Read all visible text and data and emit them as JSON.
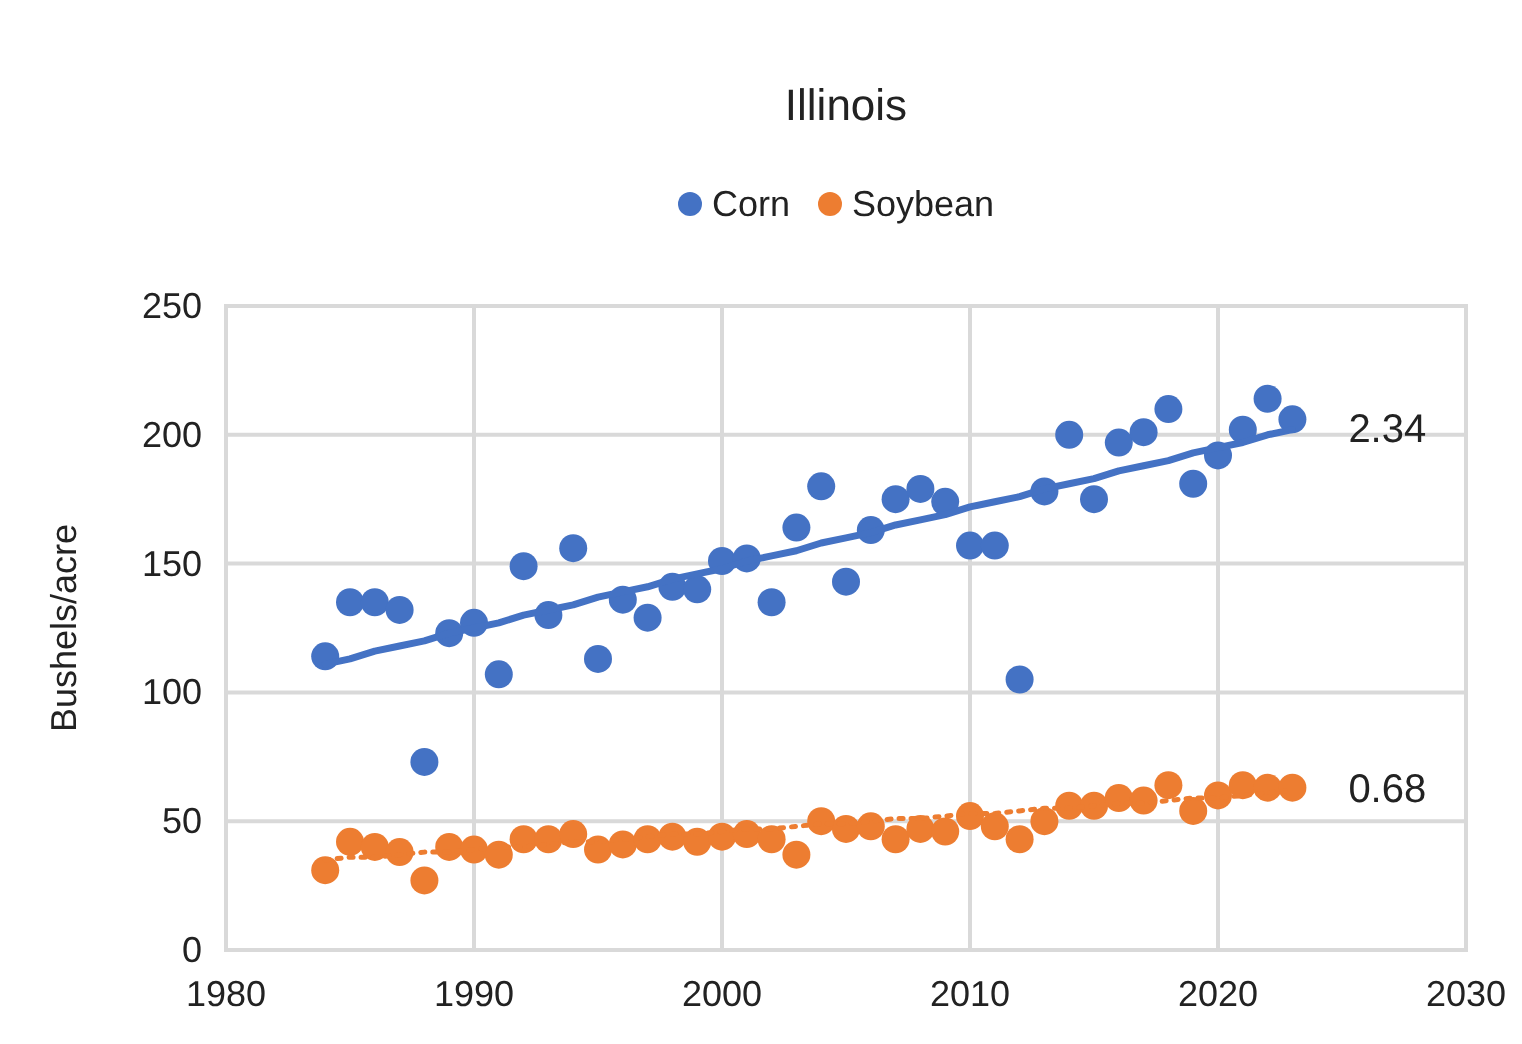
{
  "chart_data": {
    "type": "scatter",
    "title": "Illinois",
    "ylabel": "Bushels/acre",
    "xlim": [
      1980,
      2030
    ],
    "xticks": [
      1980,
      1990,
      2000,
      2010,
      2020,
      2030
    ],
    "ylim": [
      0,
      250
    ],
    "yticks": [
      0,
      50,
      100,
      150,
      200,
      250
    ],
    "grid": true,
    "legend": "top",
    "marker": "circle",
    "x": [
      1984,
      1985,
      1986,
      1987,
      1988,
      1989,
      1990,
      1991,
      1992,
      1993,
      1994,
      1995,
      1996,
      1997,
      1998,
      1999,
      2000,
      2001,
      2002,
      2003,
      2004,
      2005,
      2006,
      2007,
      2008,
      2009,
      2010,
      2011,
      2012,
      2013,
      2014,
      2015,
      2016,
      2017,
      2018,
      2019,
      2020,
      2021,
      2022,
      2023
    ],
    "series": [
      {
        "name": "Corn",
        "color": "#4472c4",
        "values": [
          114,
          135,
          135,
          132,
          73,
          123,
          127,
          107,
          149,
          130,
          156,
          113,
          136,
          129,
          141,
          140,
          151,
          152,
          135,
          164,
          180,
          143,
          163,
          175,
          179,
          174,
          157,
          157,
          105,
          178,
          200,
          175,
          197,
          201,
          210,
          181,
          192,
          202,
          214,
          206
        ]
      },
      {
        "name": "Soybean",
        "color": "#ed7d31",
        "values": [
          31,
          42,
          40,
          38,
          27,
          40,
          39,
          37,
          43,
          43,
          45,
          39,
          41,
          43,
          44,
          42,
          44,
          45,
          43,
          37,
          50,
          47,
          48,
          43,
          47,
          46,
          52,
          48,
          43,
          50,
          56,
          56,
          59,
          58,
          64,
          54,
          60,
          64,
          63,
          63
        ]
      },
      {
        "type": "line",
        "color": "#4472c4",
        "line_style": "solid",
        "marker": "none",
        "values": [
          111,
          113,
          116,
          118,
          120,
          123,
          125,
          127,
          130,
          132,
          134,
          137,
          139,
          141,
          144,
          146,
          148,
          151,
          153,
          155,
          158,
          160,
          162,
          165,
          167,
          169,
          172,
          174,
          176,
          179,
          181,
          183,
          186,
          188,
          190,
          193,
          195,
          197,
          200,
          202
        ]
      },
      {
        "type": "line",
        "color": "#ed7d31",
        "line_style": "dotted",
        "marker": "none",
        "values": [
          35,
          36,
          36,
          37,
          38,
          38,
          39,
          40,
          40,
          41,
          42,
          42,
          43,
          44,
          45,
          45,
          46,
          47,
          47,
          48,
          49,
          49,
          50,
          51,
          51,
          52,
          53,
          53,
          54,
          55,
          55,
          56,
          57,
          57,
          58,
          59,
          59,
          60,
          61,
          62
        ]
      }
    ],
    "annotations": [
      {
        "text": "2.34",
        "x": 2023,
        "y": 202
      },
      {
        "text": "0.68",
        "x": 2023,
        "y": 62
      }
    ]
  }
}
